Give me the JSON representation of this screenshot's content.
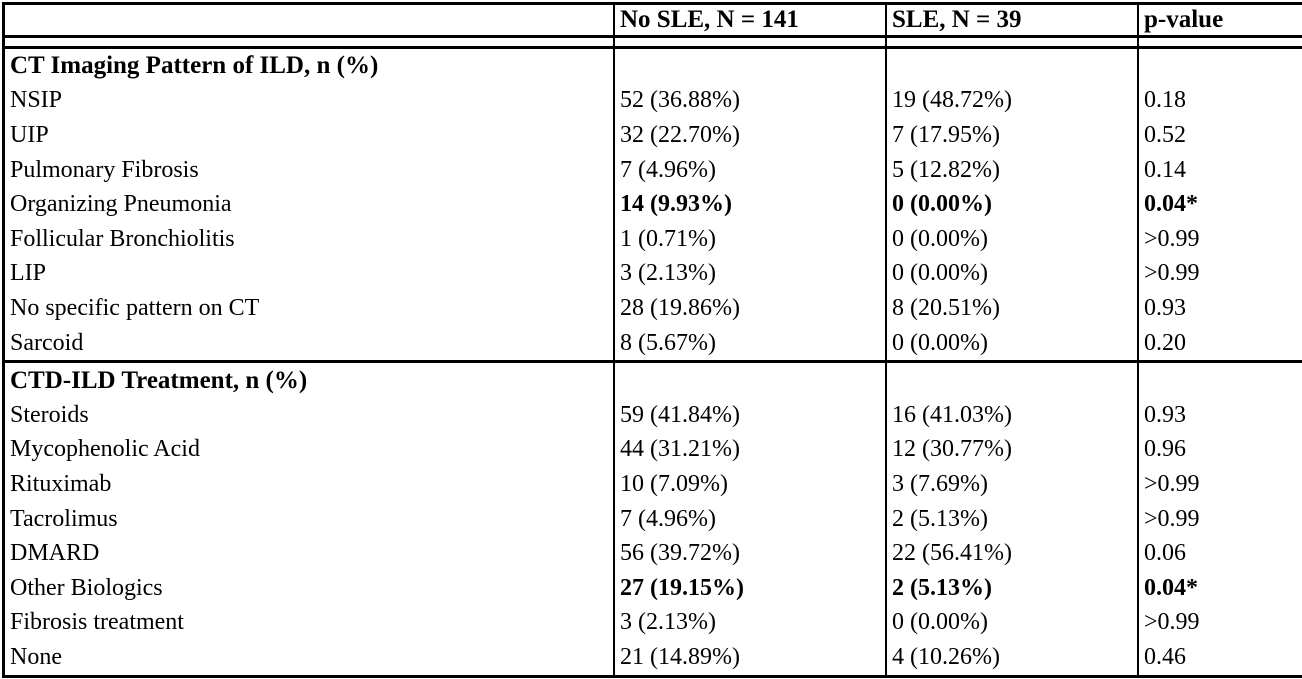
{
  "colors": {
    "text": "#000000",
    "border": "#000000",
    "background": "#ffffff"
  },
  "table": {
    "columns": [
      "",
      "No SLE, N = 141",
      "SLE, N = 39",
      "p-value"
    ],
    "sections": [
      {
        "title": "CT Imaging Pattern of ILD, n (%)",
        "rows": [
          {
            "label": "NSIP",
            "no_sle": "52 (36.88%)",
            "sle": "19 (48.72%)",
            "p_value": "0.18",
            "bold": false
          },
          {
            "label": "UIP",
            "no_sle": "32 (22.70%)",
            "sle": "7 (17.95%)",
            "p_value": "0.52",
            "bold": false
          },
          {
            "label": "Pulmonary Fibrosis",
            "no_sle": "7 (4.96%)",
            "sle": "5 (12.82%)",
            "p_value": "0.14",
            "bold": false
          },
          {
            "label": "Organizing Pneumonia",
            "no_sle": "14 (9.93%)",
            "sle": "0 (0.00%)",
            "p_value": "0.04*",
            "bold": true
          },
          {
            "label": "Follicular Bronchiolitis",
            "no_sle": "1 (0.71%)",
            "sle": "0 (0.00%)",
            "p_value": ">0.99",
            "bold": false
          },
          {
            "label": "LIP",
            "no_sle": "3 (2.13%)",
            "sle": "0 (0.00%)",
            "p_value": ">0.99",
            "bold": false
          },
          {
            "label": "No specific pattern on CT",
            "no_sle": "28 (19.86%)",
            "sle": "8 (20.51%)",
            "p_value": "0.93",
            "bold": false
          },
          {
            "label": "Sarcoid",
            "no_sle": "8 (5.67%)",
            "sle": "0 (0.00%)",
            "p_value": "0.20",
            "bold": false
          }
        ]
      },
      {
        "title": "CTD-ILD Treatment, n (%)",
        "rows": [
          {
            "label": "Steroids",
            "no_sle": "59 (41.84%)",
            "sle": "16 (41.03%)",
            "p_value": "0.93",
            "bold": false
          },
          {
            "label": "Mycophenolic Acid",
            "no_sle": "44 (31.21%)",
            "sle": "12 (30.77%)",
            "p_value": "0.96",
            "bold": false
          },
          {
            "label": "Rituximab",
            "no_sle": "10 (7.09%)",
            "sle": "3 (7.69%)",
            "p_value": ">0.99",
            "bold": false
          },
          {
            "label": "Tacrolimus",
            "no_sle": "7 (4.96%)",
            "sle": "2 (5.13%)",
            "p_value": ">0.99",
            "bold": false
          },
          {
            "label": "DMARD",
            "no_sle": "56 (39.72%)",
            "sle": "22 (56.41%)",
            "p_value": "0.06",
            "bold": false
          },
          {
            "label": "Other Biologics",
            "no_sle": "27 (19.15%)",
            "sle": "2 (5.13%)",
            "p_value": "0.04*",
            "bold": true
          },
          {
            "label": "Fibrosis treatment",
            "no_sle": "3 (2.13%)",
            "sle": "0 (0.00%)",
            "p_value": ">0.99",
            "bold": false
          },
          {
            "label": "None",
            "no_sle": "21 (14.89%)",
            "sle": "4 (10.26%)",
            "p_value": "0.46",
            "bold": false
          }
        ]
      }
    ]
  }
}
